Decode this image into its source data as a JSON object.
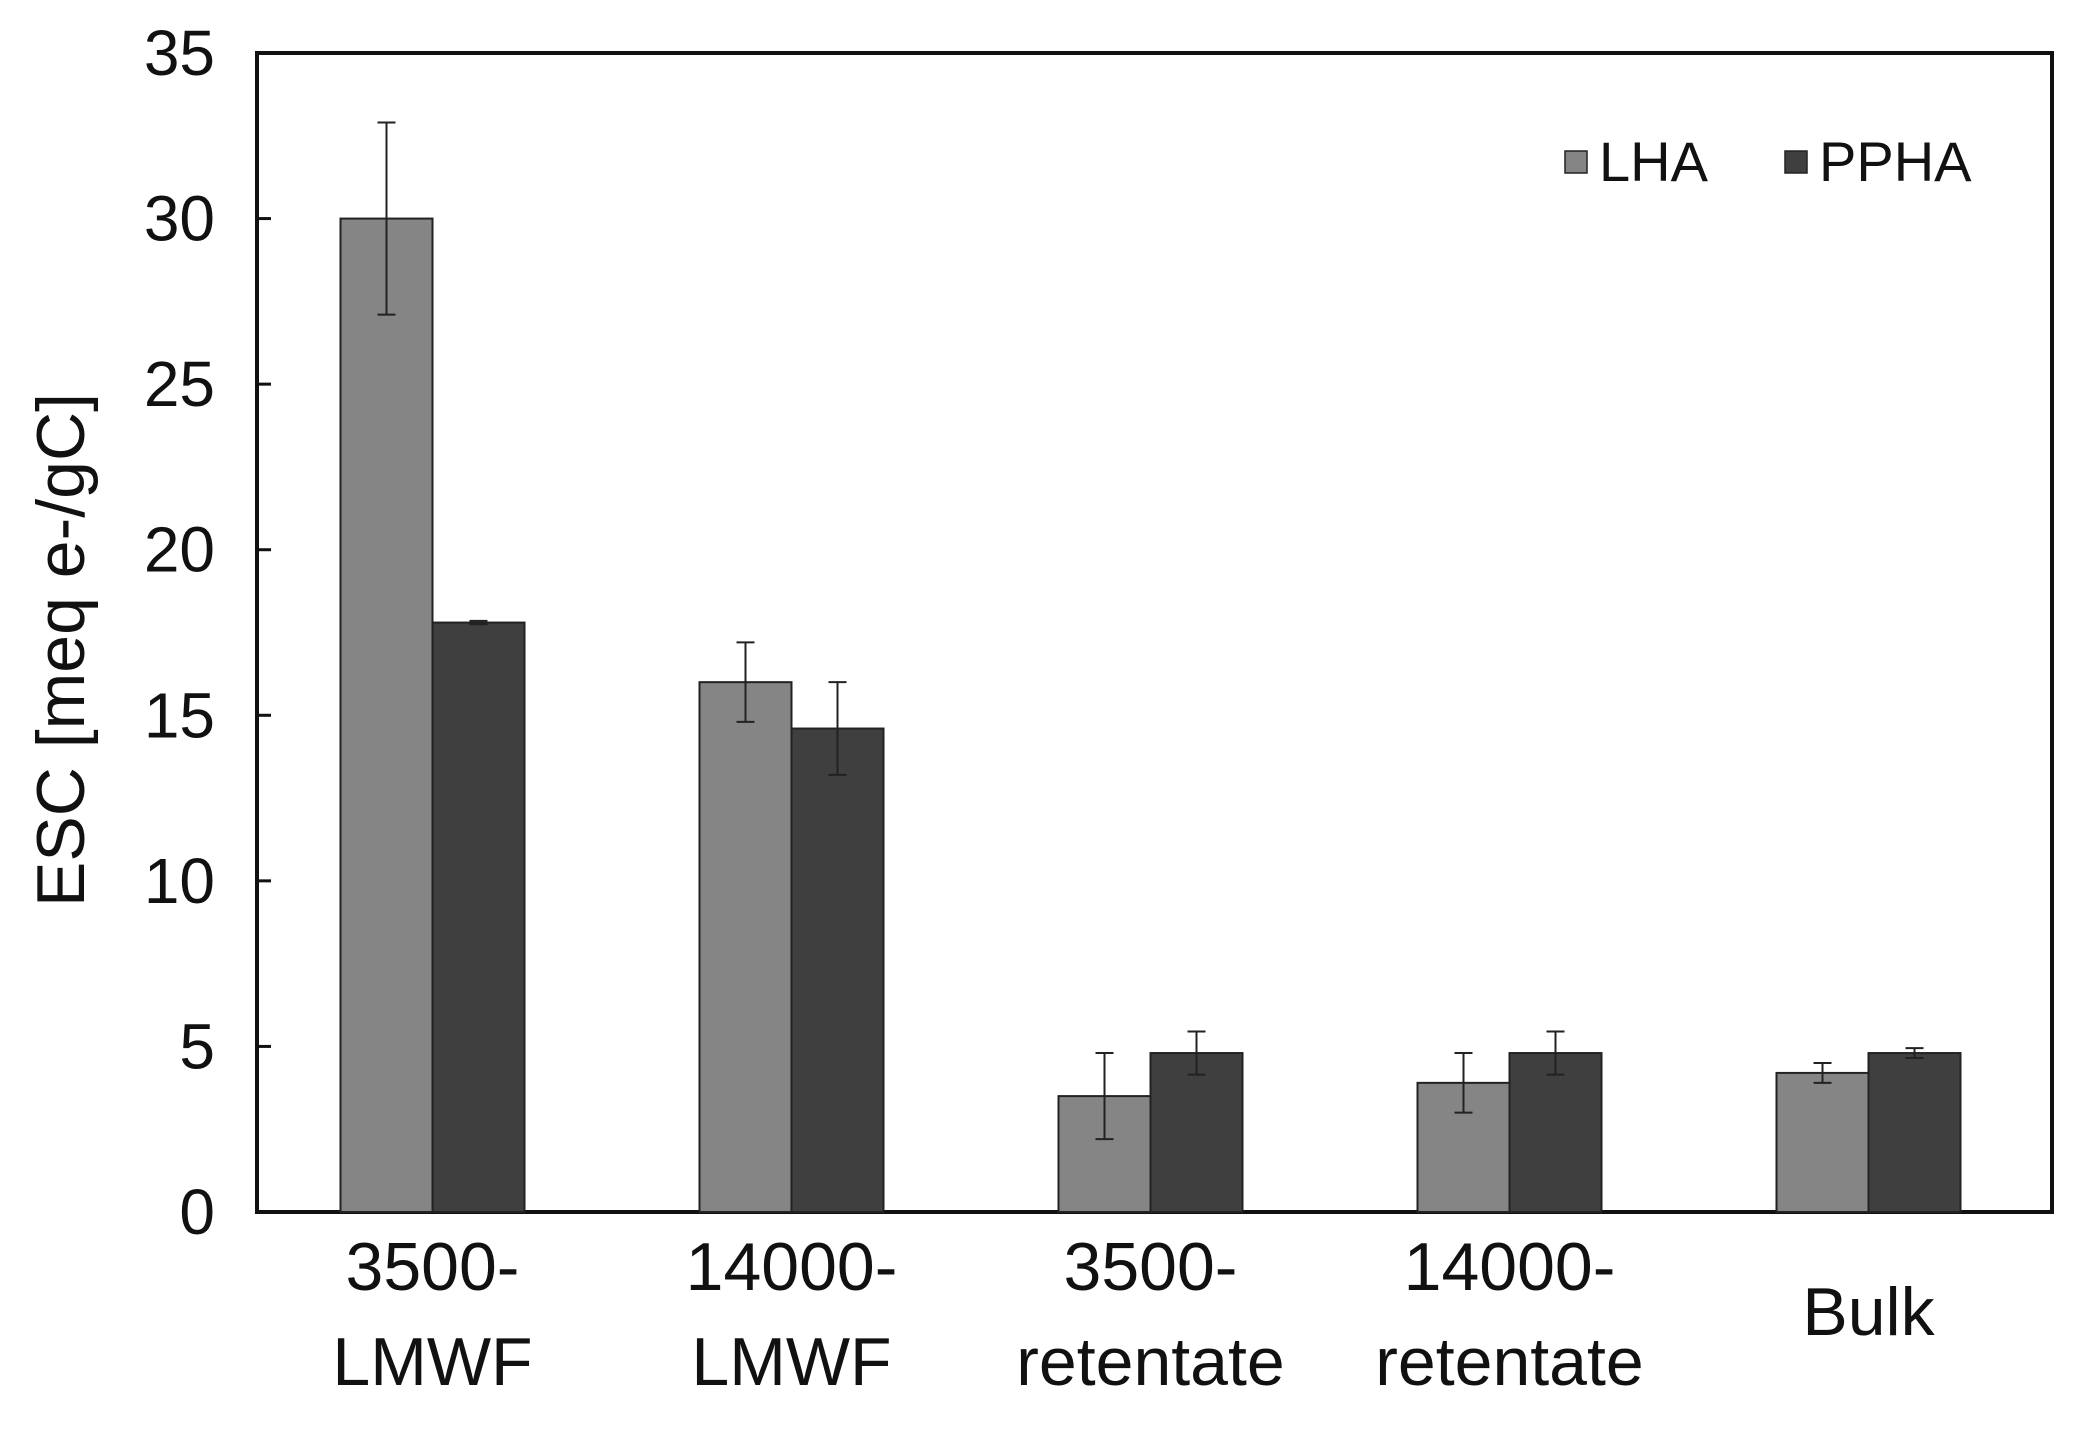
{
  "chart_data": {
    "type": "bar",
    "title": "",
    "xlabel": "",
    "ylabel": "ESC [meq e-/gC]",
    "ylim": [
      0,
      35
    ],
    "yticks": [
      0,
      5,
      10,
      15,
      20,
      25,
      30,
      35
    ],
    "grid": false,
    "legend_position": "top-right",
    "categories": [
      {
        "line1": "3500-",
        "line2": "LMWF"
      },
      {
        "line1": "14000-",
        "line2": "LMWF"
      },
      {
        "line1": "3500-",
        "line2": "retentate"
      },
      {
        "line1": "14000-",
        "line2": "retentate"
      },
      {
        "line1": "Bulk",
        "line2": ""
      }
    ],
    "series": [
      {
        "name": "LHA",
        "color": "#858585",
        "values": [
          30.0,
          16.0,
          3.5,
          3.9,
          4.2
        ],
        "errors": [
          2.9,
          1.2,
          1.3,
          0.9,
          0.3
        ]
      },
      {
        "name": "PPHA",
        "color": "#3f3f3f",
        "values": [
          17.8,
          14.6,
          4.8,
          4.8,
          4.8
        ],
        "errors": [
          0.05,
          1.4,
          0.65,
          0.65,
          0.15
        ]
      }
    ]
  }
}
